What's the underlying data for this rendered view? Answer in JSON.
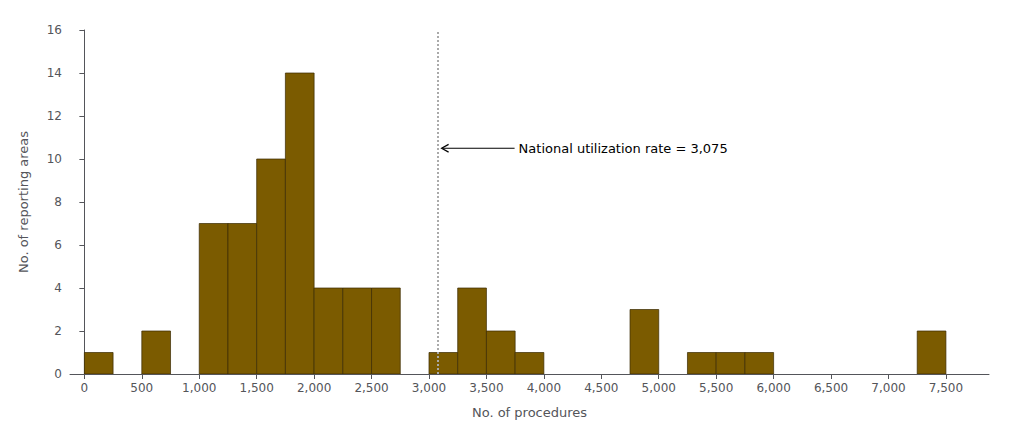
{
  "chart_data": {
    "type": "bar",
    "x": [
      0,
      500,
      1000,
      1250,
      1500,
      1750,
      2000,
      2250,
      2500,
      3000,
      3250,
      3500,
      3750,
      4750,
      5250,
      5500,
      5750,
      7250
    ],
    "values": [
      1,
      2,
      7,
      7,
      10,
      14,
      4,
      4,
      4,
      1,
      4,
      2,
      1,
      3,
      1,
      1,
      1,
      2
    ],
    "bin_width": 250,
    "color": "#7B5B00",
    "xlabel": "No. of procedures",
    "ylabel": "No. of reporting areas",
    "xlim": [
      -125,
      7875
    ],
    "xticks": [
      0,
      500,
      {
        "value": 1000,
        "label": "1,000"
      },
      {
        "value": 1500,
        "label": "1,500"
      },
      {
        "value": 2000,
        "label": "2,000"
      },
      {
        "value": 2500,
        "label": "2,500"
      },
      {
        "value": 3000,
        "label": "3,000"
      },
      {
        "value": 3500,
        "label": "3,500"
      },
      {
        "value": 4000,
        "label": "4,000"
      },
      {
        "value": 4500,
        "label": "4,500"
      },
      {
        "value": 5000,
        "label": "5,000"
      },
      {
        "value": 5500,
        "label": "5,500"
      },
      {
        "value": 6000,
        "label": "6,000"
      },
      {
        "value": 6500,
        "label": "6,500"
      },
      {
        "value": 7000,
        "label": "7,000"
      },
      {
        "value": 7500,
        "label": "7,500"
      }
    ],
    "ylim": [
      0,
      16
    ],
    "yticks": [
      0,
      2,
      4,
      6,
      8,
      10,
      12,
      14,
      16
    ],
    "grid": false,
    "reference_line": {
      "x": 3075,
      "color": "#aaaaaa",
      "line_style": "dotted"
    },
    "annotation": {
      "text": "National utilization rate = 3,075",
      "x": 3780,
      "y": 10.5
    }
  }
}
